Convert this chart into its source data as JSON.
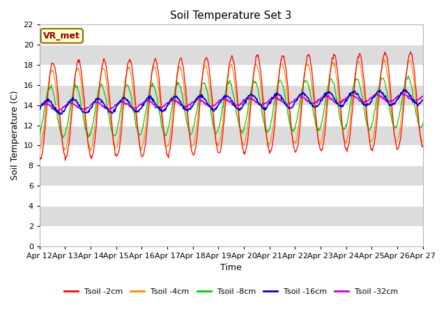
{
  "title": "Soil Temperature Set 3",
  "xlabel": "Time",
  "ylabel": "Soil Temperature (C)",
  "ylim": [
    0,
    22
  ],
  "yticks": [
    0,
    2,
    4,
    6,
    8,
    10,
    12,
    14,
    16,
    18,
    20,
    22
  ],
  "x_labels": [
    "Apr 12",
    "Apr 13",
    "Apr 14",
    "Apr 15",
    "Apr 16",
    "Apr 17",
    "Apr 18",
    "Apr 19",
    "Apr 20",
    "Apr 21",
    "Apr 22",
    "Apr 23",
    "Apr 24",
    "Apr 25",
    "Apr 26",
    "Apr 27"
  ],
  "annotation_text": "VR_met",
  "annotation_color": "#8B0000",
  "annotation_bg": "#FFFFCC",
  "annotation_edge": "#8B6914",
  "bg_color": "#FFFFFF",
  "band_light": "#FFFFFF",
  "band_dark": "#DCDCDC",
  "grid_color": "#FFFFFF",
  "series": [
    {
      "label": "Tsoil -2cm",
      "color": "#FF0000"
    },
    {
      "label": "Tsoil -4cm",
      "color": "#FF8C00"
    },
    {
      "label": "Tsoil -8cm",
      "color": "#00CC00"
    },
    {
      "label": "Tsoil -16cm",
      "color": "#0000CC"
    },
    {
      "label": "Tsoil -32cm",
      "color": "#CC00CC"
    }
  ],
  "num_points": 720,
  "days": 15
}
